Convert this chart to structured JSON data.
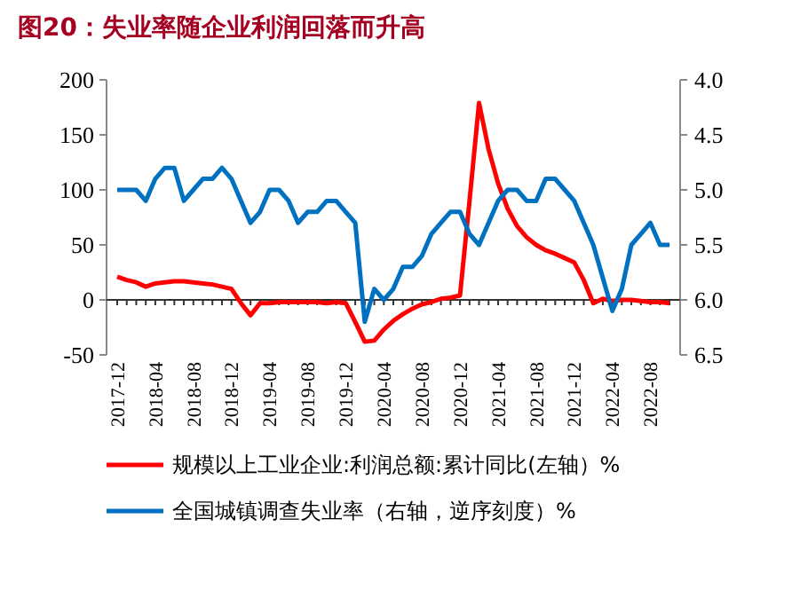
{
  "chart_data": {
    "type": "line",
    "title": "图20：失业率随企业利润回落而升高",
    "categories": [
      "2017-12",
      null,
      null,
      null,
      "2018-04",
      null,
      null,
      null,
      "2018-08",
      null,
      null,
      null,
      "2018-12",
      null,
      null,
      null,
      "2019-04",
      null,
      null,
      null,
      "2019-08",
      null,
      null,
      null,
      "2019-12",
      null,
      null,
      null,
      "2020-04",
      null,
      null,
      null,
      "2020-08",
      null,
      null,
      null,
      "2020-12",
      null,
      null,
      null,
      "2021-04",
      null,
      null,
      null,
      "2021-08",
      null,
      null,
      null,
      "2021-12",
      null,
      null,
      null,
      "2022-04",
      null,
      null,
      null,
      "2022-08",
      null,
      null
    ],
    "series": [
      {
        "name": "规模以上工业企业:利润总额:累计同比(左轴）%",
        "color": "#ff0000",
        "values": [
          21,
          18,
          16,
          12,
          15,
          16,
          17,
          17,
          16,
          15,
          14,
          12,
          10,
          -3,
          -14,
          -3,
          -3,
          -2,
          -2,
          -2,
          -2,
          -2,
          -3,
          -2,
          -3,
          -20,
          -38,
          -37,
          -27,
          -19,
          -13,
          -8,
          -4,
          -2,
          1,
          2,
          4,
          90,
          179,
          137,
          106,
          83,
          67,
          57,
          50,
          45,
          42,
          38,
          34,
          18,
          -3,
          1,
          -1,
          0,
          0,
          -1,
          -2,
          -2,
          -3
        ]
      },
      {
        "name": "全国城镇调查失业率（右轴，逆序刻度）%",
        "color": "#0070c0",
        "axis": "y2",
        "values": [
          5.0,
          5.0,
          5.0,
          5.1,
          4.9,
          4.8,
          4.8,
          5.1,
          5.0,
          4.9,
          4.9,
          4.8,
          4.9,
          5.1,
          5.3,
          5.2,
          5.0,
          5.0,
          5.1,
          5.3,
          5.2,
          5.2,
          5.1,
          5.1,
          5.2,
          5.3,
          6.2,
          5.9,
          6.0,
          5.9,
          5.7,
          5.7,
          5.6,
          5.4,
          5.3,
          5.2,
          5.2,
          5.4,
          5.5,
          5.3,
          5.1,
          5.0,
          5.0,
          5.1,
          5.1,
          4.9,
          4.9,
          5.0,
          5.1,
          5.3,
          5.5,
          5.8,
          6.1,
          5.9,
          5.5,
          5.4,
          5.3,
          5.5,
          5.5
        ]
      }
    ],
    "ylim": [
      -50,
      200
    ],
    "yticks": [
      -50,
      0,
      50,
      100,
      150,
      200
    ],
    "y2lim": [
      6.5,
      4.0
    ],
    "y2ticks": [
      {
        "value": 6.5,
        "label": "6.5"
      },
      {
        "value": 6.0,
        "label": "6.0"
      },
      {
        "value": 5.5,
        "label": "5.5"
      },
      {
        "value": 5.0,
        "label": "5.0"
      },
      {
        "value": 4.5,
        "label": "4.5"
      },
      {
        "value": 4.0,
        "label": "4.0"
      }
    ],
    "legend": "bottom"
  }
}
